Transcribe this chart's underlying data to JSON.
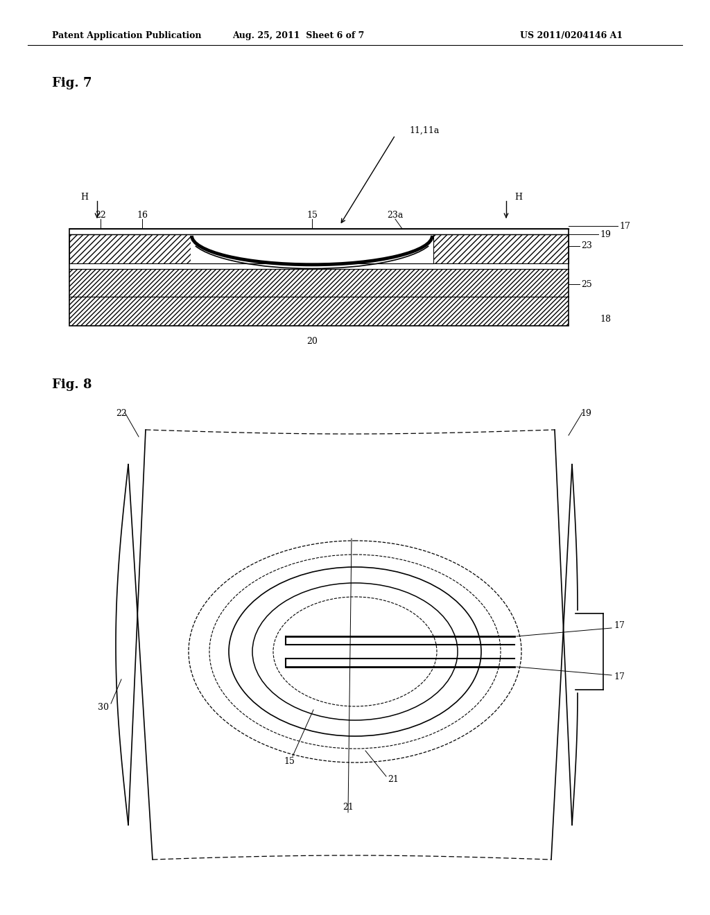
{
  "bg_color": "#ffffff",
  "header_left": "Patent Application Publication",
  "header_mid": "Aug. 25, 2011  Sheet 6 of 7",
  "header_right": "US 2011/0204146 A1",
  "fig7_label": "Fig. 7",
  "fig8_label": "Fig. 8"
}
